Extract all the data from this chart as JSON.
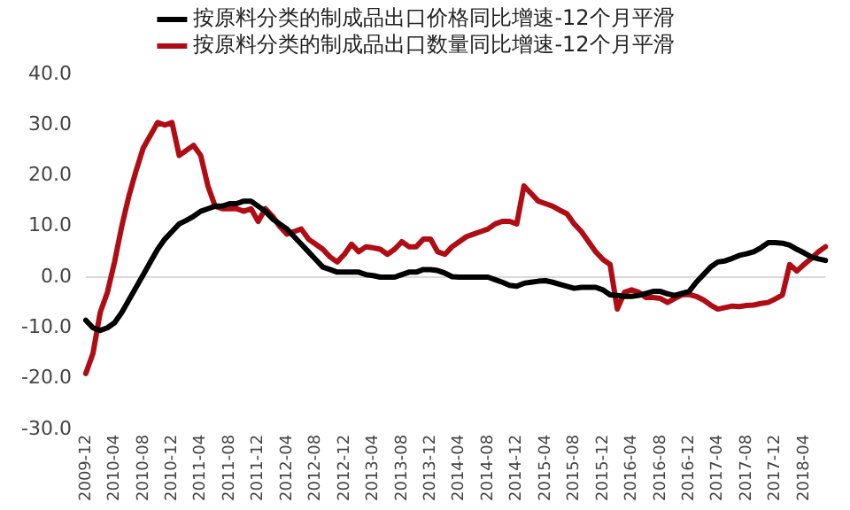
{
  "chart_data": {
    "type": "line",
    "categories": [
      "2009-12",
      null,
      null,
      null,
      "2010-04",
      null,
      null,
      null,
      "2010-08",
      null,
      null,
      null,
      "2010-12",
      null,
      null,
      null,
      "2011-04",
      null,
      null,
      null,
      "2011-08",
      null,
      null,
      null,
      "2011-12",
      null,
      null,
      null,
      "2012-04",
      null,
      null,
      null,
      "2012-08",
      null,
      null,
      null,
      "2012-12",
      null,
      null,
      null,
      "2013-04",
      null,
      null,
      null,
      "2013-08",
      null,
      null,
      null,
      "2013-12",
      null,
      null,
      null,
      "2014-04",
      null,
      null,
      null,
      "2014-08",
      null,
      null,
      null,
      "2014-12",
      null,
      null,
      null,
      "2015-04",
      null,
      null,
      null,
      "2015-08",
      null,
      null,
      null,
      "2015-12",
      null,
      null,
      null,
      "2016-04",
      null,
      null,
      null,
      "2016-08",
      null,
      null,
      null,
      "2016-12",
      null,
      null,
      null,
      "2017-04",
      null,
      null,
      null,
      "2017-08",
      null,
      null,
      null,
      "2017-12",
      null,
      null,
      null,
      "2018-04",
      null,
      null,
      null
    ],
    "series": [
      {
        "name": "按原料分类的制成品出口价格同比增速-12个月平滑",
        "color": "#000000",
        "values": [
          -8.5,
          -10,
          -10.5,
          -10,
          -9,
          -7,
          -4.5,
          -2,
          0.5,
          3,
          5.5,
          7.5,
          9,
          10.5,
          11.2,
          12,
          13,
          13.5,
          14,
          14,
          14.5,
          14.5,
          15,
          15,
          14,
          13,
          11.5,
          10.5,
          9.5,
          8,
          6.5,
          5,
          3.5,
          2,
          1.5,
          1,
          1,
          1,
          1,
          0.5,
          0.3,
          0,
          0,
          0,
          0.5,
          1,
          1,
          1.5,
          1.5,
          1.3,
          0.8,
          0.1,
          0,
          0,
          0,
          0,
          0,
          -0.5,
          -1,
          -1.6,
          -1.8,
          -1.2,
          -1,
          -0.8,
          -0.7,
          -1,
          -1.4,
          -1.8,
          -2.2,
          -2,
          -2,
          -2,
          -2.5,
          -3.5,
          -3.6,
          -3.8,
          -3.8,
          -3.6,
          -3.2,
          -2.8,
          -2.8,
          -3.3,
          -3.6,
          -3.2,
          -2.8,
          -1,
          0.5,
          2,
          3,
          3.2,
          3.7,
          4.3,
          4.6,
          5,
          5.8,
          6.8,
          6.8,
          6.7,
          6.3,
          5.5,
          4.8,
          4,
          3.6,
          3.3
        ]
      },
      {
        "name": "按原料分类的制成品出口数量同比增速-12个月平滑",
        "color": "#b00c14",
        "values": [
          -19,
          -15,
          -7,
          -3,
          3,
          10,
          16,
          21,
          25.5,
          28,
          30.5,
          30,
          30.5,
          24,
          25,
          26,
          24,
          18,
          14,
          13.5,
          13.5,
          13.5,
          13,
          13.5,
          11,
          13.5,
          12,
          10,
          8.5,
          9,
          9.5,
          7.5,
          6.5,
          5.5,
          4,
          3,
          4.5,
          6.5,
          5,
          6,
          5.8,
          5.5,
          4.5,
          5.5,
          7,
          6,
          6,
          7.5,
          7.5,
          5,
          4.5,
          6,
          7,
          8,
          8.5,
          9,
          9.5,
          10.5,
          11,
          11,
          10.5,
          18,
          16.5,
          15,
          14.5,
          14,
          13.2,
          12.5,
          10.5,
          9,
          7,
          5,
          3.5,
          2.5,
          -6.3,
          -3,
          -2.5,
          -3,
          -4,
          -4,
          -4.2,
          -5,
          -4.2,
          -3.5,
          -3.4,
          -3.8,
          -4.5,
          -5.5,
          -6.3,
          -6,
          -5.7,
          -5.8,
          -5.6,
          -5.5,
          -5.2,
          -5,
          -4.3,
          -3.5,
          2.5,
          1.2,
          2.5,
          3.7,
          5,
          6
        ]
      }
    ],
    "ylim": [
      -30,
      40
    ],
    "yticks": [
      {
        "value": -30,
        "label": "-30.0"
      },
      {
        "value": -20,
        "label": "-20.0"
      },
      {
        "value": -10,
        "label": "-10.0"
      },
      {
        "value": 0,
        "label": "0.0"
      },
      {
        "value": 10,
        "label": "10.0"
      },
      {
        "value": 20,
        "label": "20.0"
      },
      {
        "value": 30,
        "label": "30.0"
      },
      {
        "value": 40,
        "label": "40.0"
      }
    ],
    "ref_lines": [
      {
        "axis": "y",
        "value": 0,
        "color": "#d9d9d9"
      }
    ],
    "grid": false,
    "legend": "top",
    "marker": "none",
    "line_style": "solid"
  }
}
